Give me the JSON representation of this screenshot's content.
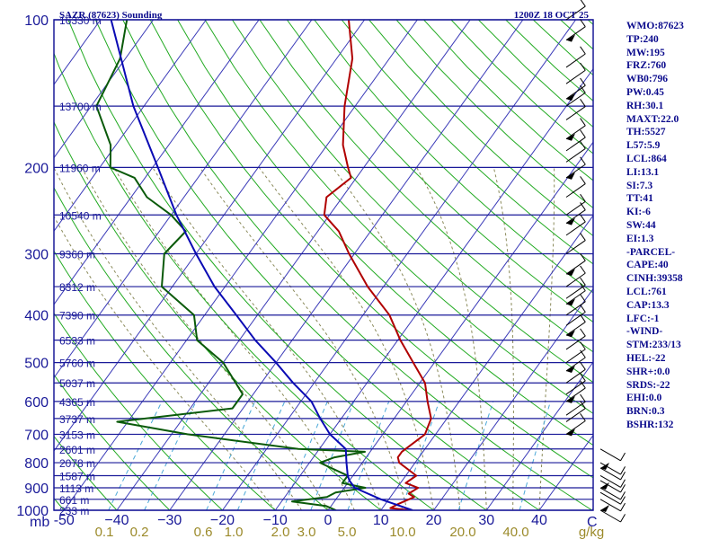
{
  "header": {
    "station": "SAZR (87623) Sounding",
    "valid_time": "1200Z 18 OCT 25"
  },
  "colors": {
    "isobar": "#1a1a99",
    "isotherm": "#3a3ab8",
    "dry_adiabat": "#22aa22",
    "moist_adiabat": "#8a8a5a",
    "mixing_ratio": "#4aa8d8",
    "temperature": "#b00000",
    "dewpoint": "#0a5a0a",
    "parcel": "#0a0ab4",
    "wind_barb": "#000000",
    "index_text": "#0a0a8c"
  },
  "indices": [
    "WMO:87623",
    "TP:240",
    "MW:195",
    "FRZ:760",
    "WB0:796",
    "PW:0.45",
    "RH:30.1",
    "MAXT:22.0",
    "TH:5527",
    "L57:5.9",
    "LCL:864",
    "LI:13.1",
    "SI:7.3",
    "TT:41",
    "KI:-6",
    "SW:44",
    "EI:1.3",
    "-PARCEL-",
    "CAPE:40",
    "CINH:39358",
    "LCL:761",
    "CAP:13.3",
    "LFC:-1",
    "-WIND-",
    "STM:233/13",
    "HEL:-22",
    "SHR+:0.0",
    "SRDS:-22",
    "EHI:0.0",
    "BRN:0.3",
    "BSHR:132"
  ],
  "chart_data": {
    "type": "skew-t log-p sounding",
    "title": "SAZR (87623) Sounding  1200Z 18 OCT 25",
    "pressure_unit": "mb",
    "pressure_range_mb": [
      1000,
      100
    ],
    "temperature_unit": "C",
    "mixing_ratio_unit": "g/kg",
    "pressure_ticks": [
      100,
      200,
      300,
      400,
      500,
      600,
      700,
      800,
      900,
      1000
    ],
    "pressure_tick_labels": [
      "100",
      "200",
      "300",
      "400",
      "500",
      "600",
      "700",
      "800",
      "900",
      "1000"
    ],
    "pressure_axis_unit_label": "mb",
    "temperature_ticks": [
      -50,
      -40,
      -30,
      -20,
      -10,
      0,
      10,
      20,
      30,
      40
    ],
    "temperature_tick_labels": [
      "-50",
      "−40",
      "−30",
      "−20",
      "−10",
      "0",
      "10",
      "20",
      "30",
      "40"
    ],
    "temperature_axis_unit_label": "C",
    "mixing_ratio_labels": [
      "0.1",
      "0.2",
      "0.6",
      "1.0",
      "2.0",
      "3.0",
      "5.0",
      "10.0",
      "20.0",
      "40.0",
      "g/kg"
    ],
    "height_labels": [
      {
        "p": 100,
        "text": "16330 m"
      },
      {
        "p": 150,
        "text": "13700 m"
      },
      {
        "p": 200,
        "text": "11960 m"
      },
      {
        "p": 250,
        "text": "10540 m"
      },
      {
        "p": 300,
        "text": "9360 m"
      },
      {
        "p": 350,
        "text": "8312 m"
      },
      {
        "p": 400,
        "text": "7390 m"
      },
      {
        "p": 450,
        "text": "6533 m"
      },
      {
        "p": 500,
        "text": "5760 m"
      },
      {
        "p": 550,
        "text": "5037 m"
      },
      {
        "p": 600,
        "text": "4365 m"
      },
      {
        "p": 650,
        "text": "3737 m"
      },
      {
        "p": 700,
        "text": "3153 m"
      },
      {
        "p": 750,
        "text": "2601 m"
      },
      {
        "p": 800,
        "text": "2078 m"
      },
      {
        "p": 850,
        "text": "1587 m"
      },
      {
        "p": 900,
        "text": "1113 m"
      },
      {
        "p": 950,
        "text": "661 m"
      },
      {
        "p": 1000,
        "text": "233 m"
      }
    ],
    "series": [
      {
        "name": "temperature",
        "points": [
          [
            1000,
            15.5
          ],
          [
            990,
            11.5
          ],
          [
            970,
            12.5
          ],
          [
            940,
            14.5
          ],
          [
            925,
            13
          ],
          [
            900,
            14
          ],
          [
            880,
            11
          ],
          [
            850,
            12
          ],
          [
            800,
            7
          ],
          [
            780,
            6
          ],
          [
            760,
            6
          ],
          [
            700,
            8
          ],
          [
            650,
            7
          ],
          [
            600,
            4
          ],
          [
            550,
            1
          ],
          [
            500,
            -4
          ],
          [
            450,
            -9.5
          ],
          [
            400,
            -15
          ],
          [
            350,
            -23
          ],
          [
            300,
            -31
          ],
          [
            270,
            -36
          ],
          [
            250,
            -41
          ],
          [
            230,
            -43
          ],
          [
            210,
            -41
          ],
          [
            200,
            -43
          ],
          [
            180,
            -47
          ],
          [
            150,
            -52
          ],
          [
            120,
            -57
          ],
          [
            100,
            -63
          ]
        ]
      },
      {
        "name": "dewpoint",
        "points": [
          [
            1000,
            1.5
          ],
          [
            980,
            -1
          ],
          [
            960,
            -8
          ],
          [
            940,
            -2
          ],
          [
            920,
            -1
          ],
          [
            900,
            4
          ],
          [
            880,
            -1
          ],
          [
            850,
            -1
          ],
          [
            800,
            -8
          ],
          [
            780,
            -6
          ],
          [
            760,
            -1
          ],
          [
            750,
            -14
          ],
          [
            700,
            -37
          ],
          [
            660,
            -52
          ],
          [
            620,
            -32
          ],
          [
            600,
            -32
          ],
          [
            580,
            -32
          ],
          [
            500,
            -40
          ],
          [
            450,
            -48
          ],
          [
            400,
            -52
          ],
          [
            350,
            -62
          ],
          [
            300,
            -66
          ],
          [
            270,
            -65
          ],
          [
            250,
            -70
          ],
          [
            230,
            -77
          ],
          [
            210,
            -82
          ],
          [
            200,
            -88
          ],
          [
            180,
            -91
          ],
          [
            150,
            -99
          ],
          [
            120,
            -101
          ],
          [
            100,
            -105
          ]
        ]
      },
      {
        "name": "parcel",
        "points": [
          [
            1000,
            16
          ],
          [
            950,
            8.5
          ],
          [
            900,
            2
          ],
          [
            870,
            0
          ],
          [
            850,
            -1
          ],
          [
            800,
            -3
          ],
          [
            750,
            -5
          ],
          [
            700,
            -10
          ],
          [
            650,
            -14
          ],
          [
            600,
            -18
          ],
          [
            550,
            -24
          ],
          [
            500,
            -30
          ],
          [
            450,
            -37
          ],
          [
            400,
            -44
          ],
          [
            350,
            -52
          ],
          [
            300,
            -60
          ],
          [
            250,
            -69
          ],
          [
            200,
            -79
          ],
          [
            150,
            -92
          ],
          [
            100,
            -108
          ]
        ]
      }
    ],
    "wind_barbs_mb": [
      100,
      110,
      125,
      135,
      145,
      150,
      160,
      175,
      185,
      195,
      210,
      230,
      250,
      260,
      275,
      300,
      330,
      350,
      370,
      380,
      400,
      420,
      440,
      470,
      500,
      520,
      550,
      580,
      600,
      640,
      660,
      700,
      750,
      800,
      820,
      850,
      870,
      900,
      920,
      950,
      1000
    ]
  }
}
